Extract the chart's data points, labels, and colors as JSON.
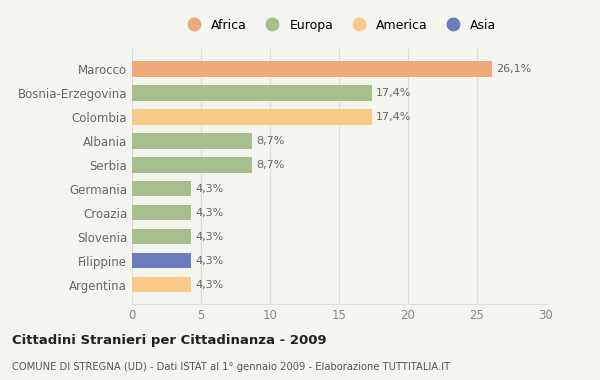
{
  "categories": [
    "Argentina",
    "Filippine",
    "Slovenia",
    "Croazia",
    "Germania",
    "Serbia",
    "Albania",
    "Colombia",
    "Bosnia-Erzegovina",
    "Marocco"
  ],
  "values": [
    4.3,
    4.3,
    4.3,
    4.3,
    4.3,
    8.7,
    8.7,
    17.4,
    17.4,
    26.1
  ],
  "labels": [
    "4,3%",
    "4,3%",
    "4,3%",
    "4,3%",
    "4,3%",
    "8,7%",
    "8,7%",
    "17,4%",
    "17,4%",
    "26,1%"
  ],
  "colors": [
    "#f9ca8a",
    "#6b7dbf",
    "#a8be8c",
    "#a8be8c",
    "#a8be8c",
    "#a8be8c",
    "#a8be8c",
    "#f9ca8a",
    "#a8be8c",
    "#f0a97a"
  ],
  "legend": [
    {
      "label": "Africa",
      "color": "#f0a97a"
    },
    {
      "label": "Europa",
      "color": "#a8be8c"
    },
    {
      "label": "America",
      "color": "#f9ca8a"
    },
    {
      "label": "Asia",
      "color": "#6b7dbf"
    }
  ],
  "title": "Cittadini Stranieri per Cittadinanza - 2009",
  "subtitle": "COMUNE DI STREGNA (UD) - Dati ISTAT al 1° gennaio 2009 - Elaborazione TUTTITALIA.IT",
  "xlim": [
    0,
    30
  ],
  "xticks": [
    0,
    5,
    10,
    15,
    20,
    25,
    30
  ],
  "bar_height": 0.65,
  "background_color": "#f5f5f0",
  "plot_bg_color": "#f5f5f0",
  "grid_color": "#dddddd",
  "label_color": "#666666",
  "value_label_color": "#666666"
}
